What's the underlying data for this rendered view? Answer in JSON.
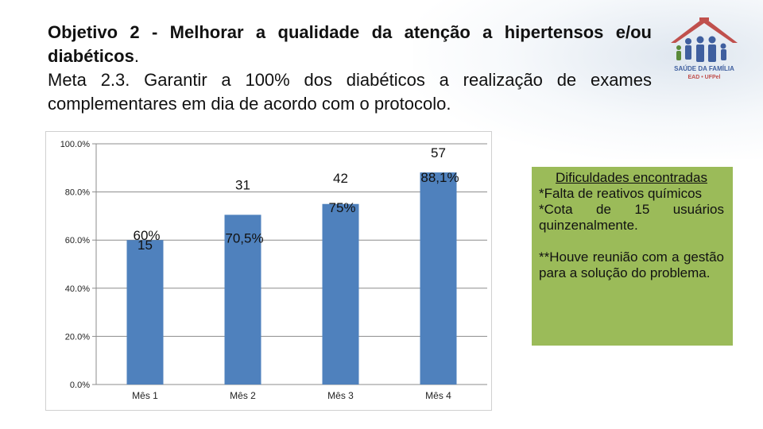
{
  "heading": {
    "objective_bold": "Objetivo 2 -  Melhorar a qualidade da atenção a hipertensos e/ou diabéticos",
    "objective_end": ".",
    "meta": "Meta 2.3. Garantir a 100% dos diabéticos a realização de exames complementares em dia de acordo com o protocolo."
  },
  "logo": {
    "icon": "family-house-logo-icon",
    "line1": "SAÚDE DA FAMÍLIA",
    "line2": "EAD • UFPel"
  },
  "chart_data": {
    "type": "bar",
    "categories": [
      "Mês 1",
      "Mês 2",
      "Mês 3",
      "Mês 4"
    ],
    "values": [
      60,
      70.5,
      75,
      88.1
    ],
    "percent_labels": [
      "60%",
      "70,5%",
      "75%",
      "88,1%"
    ],
    "count_labels": [
      "15",
      "31",
      "42",
      "57"
    ],
    "y_ticks": [
      "0.0%",
      "20.0%",
      "40.0%",
      "60.0%",
      "80.0%",
      "100.0%"
    ],
    "ylim": [
      0,
      100
    ],
    "grid": true,
    "bar_color": "#4f81bd"
  },
  "notes": {
    "title": "Dificuldades encontradas",
    "item1": "*Falta de reativos químicos",
    "item2": "*Cota de 15 usuários quinzenalmente.",
    "item3": "**Houve reunião com a gestão para a solução do problema."
  }
}
